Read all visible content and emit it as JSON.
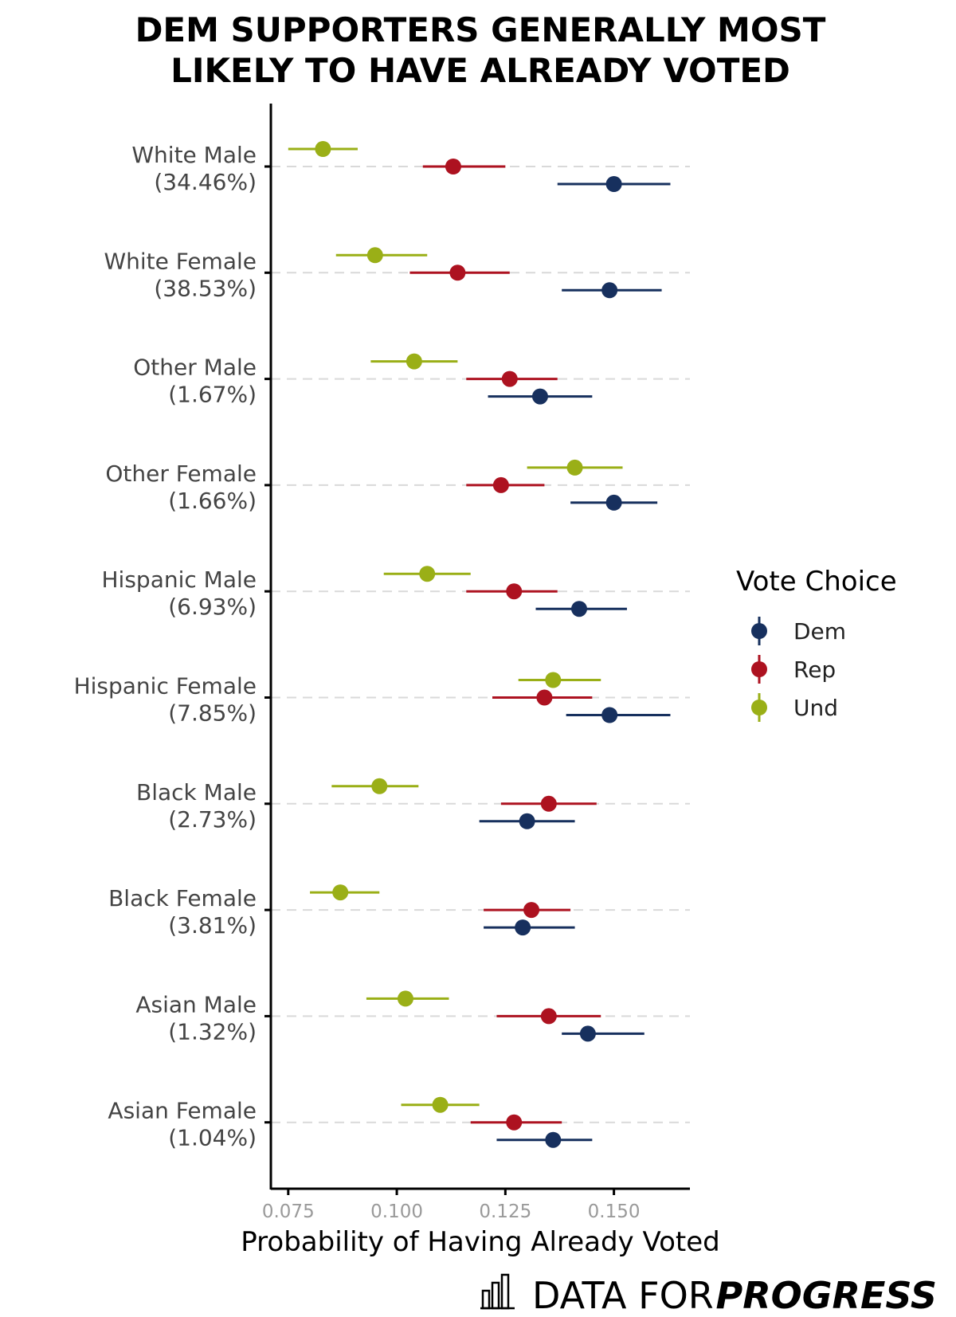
{
  "chart_data": {
    "type": "dot-interval",
    "title_lines": [
      "DEM SUPPORTERS GENERALLY MOST",
      "LIKELY TO HAVE ALREADY VOTED"
    ],
    "xlabel": "Probability of Having Already Voted",
    "xlim": [
      0.071,
      0.1675
    ],
    "xticks": [
      0.075,
      0.1,
      0.125,
      0.15
    ],
    "xtick_labels": [
      "0.075",
      "0.100",
      "0.125",
      "0.150"
    ],
    "legend": {
      "title": "Vote Choice",
      "position": "right",
      "entries": [
        {
          "name": "Dem",
          "color": "#17305e"
        },
        {
          "name": "Rep",
          "color": "#ad1220"
        },
        {
          "name": "Und",
          "color": "#9aaf17"
        }
      ]
    },
    "categories": [
      {
        "line1": "White Male",
        "line2": "(34.46%)"
      },
      {
        "line1": "White Female",
        "line2": "(38.53%)"
      },
      {
        "line1": "Other Male",
        "line2": "(1.67%)"
      },
      {
        "line1": "Other Female",
        "line2": "(1.66%)"
      },
      {
        "line1": "Hispanic Male",
        "line2": "(6.93%)"
      },
      {
        "line1": "Hispanic Female",
        "line2": "(7.85%)"
      },
      {
        "line1": "Black Male",
        "line2": "(2.73%)"
      },
      {
        "line1": "Black Female",
        "line2": "(3.81%)"
      },
      {
        "line1": "Asian Male",
        "line2": "(1.32%)"
      },
      {
        "line1": "Asian Female",
        "line2": "(1.04%)"
      }
    ],
    "series": [
      {
        "name": "Dem",
        "color": "#17305e",
        "estimates": [
          0.15,
          0.149,
          0.133,
          0.15,
          0.142,
          0.149,
          0.13,
          0.129,
          0.144,
          0.136
        ],
        "lower": [
          0.137,
          0.138,
          0.121,
          0.14,
          0.132,
          0.139,
          0.119,
          0.12,
          0.138,
          0.123
        ],
        "upper": [
          0.163,
          0.161,
          0.145,
          0.16,
          0.153,
          0.163,
          0.141,
          0.141,
          0.157,
          0.145
        ]
      },
      {
        "name": "Rep",
        "color": "#ad1220",
        "estimates": [
          0.113,
          0.114,
          0.126,
          0.124,
          0.127,
          0.134,
          0.135,
          0.131,
          0.135,
          0.127
        ],
        "lower": [
          0.106,
          0.103,
          0.116,
          0.116,
          0.116,
          0.122,
          0.124,
          0.12,
          0.123,
          0.117
        ],
        "upper": [
          0.125,
          0.126,
          0.137,
          0.134,
          0.137,
          0.145,
          0.146,
          0.14,
          0.147,
          0.138
        ]
      },
      {
        "name": "Und",
        "color": "#9aaf17",
        "estimates": [
          0.083,
          0.095,
          0.104,
          0.141,
          0.107,
          0.136,
          0.096,
          0.087,
          0.102,
          0.11
        ],
        "lower": [
          0.075,
          0.086,
          0.094,
          0.13,
          0.097,
          0.128,
          0.085,
          0.08,
          0.093,
          0.101
        ],
        "upper": [
          0.091,
          0.107,
          0.114,
          0.152,
          0.117,
          0.147,
          0.105,
          0.096,
          0.112,
          0.119
        ]
      }
    ]
  },
  "brand": {
    "light": "DATA FOR",
    "bold": "PROGRESS",
    "icon": "bar-chart-icon"
  }
}
